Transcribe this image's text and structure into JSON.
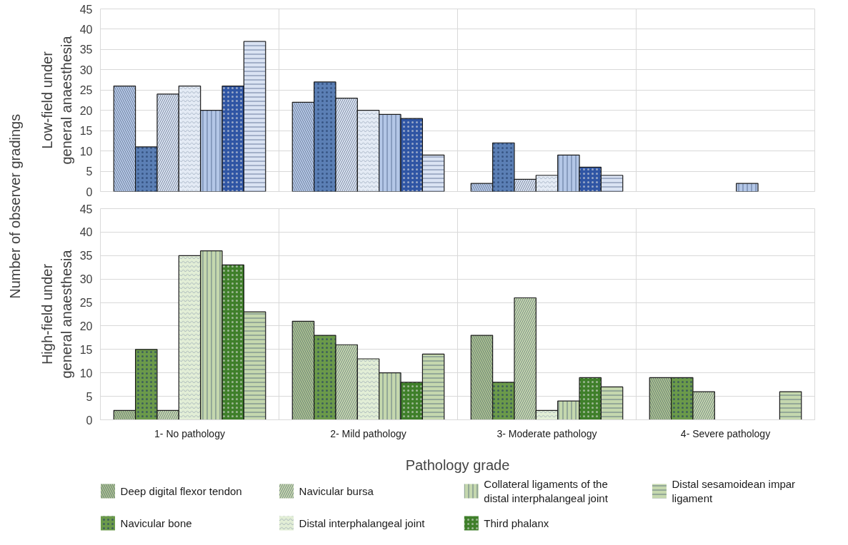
{
  "chart_data": [
    {
      "type": "bar",
      "ylabel": "Low-field under\ngeneral anaesthesia",
      "annotations": [
        "Number of observer gradings"
      ],
      "categories": [
        null,
        null,
        null,
        null
      ],
      "ylim": [
        0,
        45
      ],
      "yticks": [
        0,
        5,
        10,
        15,
        20,
        25,
        30,
        35,
        40,
        45
      ],
      "grid": true,
      "tick_labels": "y",
      "series": [
        {
          "color": "#b4c7e7",
          "values": [
            26,
            22,
            2,
            null
          ]
        },
        {
          "color": "#5b7fb5",
          "values": [
            11,
            27,
            12,
            null
          ]
        },
        {
          "color": "#dae3f3",
          "values": [
            24,
            23,
            3,
            null
          ]
        },
        {
          "color": "#e4ebf5",
          "values": [
            26,
            20,
            4,
            null
          ]
        },
        {
          "color": "#b4c7e7",
          "values": [
            20,
            19,
            9,
            2
          ]
        },
        {
          "color": "#2f55a4",
          "values": [
            26,
            18,
            6,
            null
          ]
        },
        {
          "color": "#dae3f3",
          "values": [
            37,
            9,
            4,
            null
          ]
        }
      ]
    },
    {
      "type": "bar",
      "ylabel": "High-field under\ngeneral anaesthesia",
      "xlabel": "Pathology grade",
      "categories": [
        "1- No pathology",
        "2- Mild pathology",
        "3- Moderate pathology",
        "4- Severe pathology"
      ],
      "ylim": [
        0,
        45
      ],
      "yticks": [
        0,
        5,
        10,
        15,
        20,
        25,
        30,
        35,
        40,
        45
      ],
      "grid": true,
      "legend": "bottom",
      "series": [
        {
          "name": "Deep digital flexor tendon",
          "color": "#a9c18f",
          "values": [
            2,
            21,
            18,
            9
          ]
        },
        {
          "name": "Navicular bone",
          "color": "#6b9a4a",
          "values": [
            15,
            18,
            8,
            9
          ]
        },
        {
          "name": "Navicular bursa",
          "color": "#c5d8ae",
          "values": [
            2,
            16,
            26,
            6
          ]
        },
        {
          "name": "Distal interphalangeal joint",
          "color": "#e2eed6",
          "values": [
            35,
            13,
            2,
            null
          ]
        },
        {
          "name": "Collateral ligaments of the distal interphalangeal joint",
          "color": "#c5d8ae",
          "values": [
            36,
            10,
            4,
            null
          ]
        },
        {
          "name": "Third phalanx",
          "color": "#3f7f2a",
          "values": [
            33,
            8,
            9,
            null
          ]
        },
        {
          "name": "Distal sesamoidean impar ligament",
          "color": "#c5d8ae",
          "values": [
            23,
            14,
            7,
            6
          ]
        }
      ]
    }
  ]
}
